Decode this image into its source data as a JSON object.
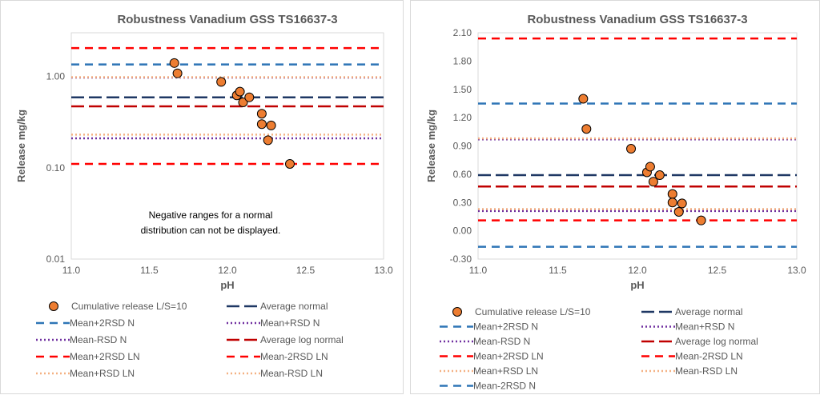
{
  "chart_data": [
    {
      "type": "scatter",
      "title": "Robustness Vanadium GSS TS16637-3",
      "xlabel": "pH",
      "ylabel": "Release mg/kg",
      "xlim": [
        11.0,
        13.0
      ],
      "ylim": [
        0.01,
        3.0
      ],
      "yscale": "log",
      "x_ticks": [
        "11.0",
        "11.5",
        "12.0",
        "12.5",
        "13.0"
      ],
      "y_ticks": [
        "0.01",
        "0.10",
        "1.00"
      ],
      "grid": false,
      "legend_position": "bottom",
      "annotation": [
        "Negative ranges for a normal",
        "distribution can not be displayed."
      ],
      "series": [
        {
          "name": "Cumulative release L/S=10",
          "kind": "markers",
          "color": "#ED7D31",
          "points": [
            [
              11.66,
              1.4
            ],
            [
              11.68,
              1.08
            ],
            [
              11.96,
              0.87
            ],
            [
              12.06,
              0.62
            ],
            [
              12.08,
              0.68
            ],
            [
              12.1,
              0.52
            ],
            [
              12.14,
              0.59
            ],
            [
              12.22,
              0.39
            ],
            [
              12.22,
              0.3
            ],
            [
              12.26,
              0.2
            ],
            [
              12.28,
              0.29
            ],
            [
              12.4,
              0.11
            ]
          ]
        },
        {
          "name": "Average normal",
          "kind": "hline",
          "value": 0.59,
          "color": "#1F3864",
          "dash": "longdash"
        },
        {
          "name": "Mean+2RSD N",
          "kind": "hline",
          "value": 1.35,
          "color": "#2E75B6",
          "dash": "dash"
        },
        {
          "name": "Mean+RSD N",
          "kind": "hline",
          "value": 0.97,
          "color": "#7030A0",
          "dash": "dot"
        },
        {
          "name": "Mean-RSD N",
          "kind": "hline",
          "value": 0.21,
          "color": "#7030A0",
          "dash": "dot"
        },
        {
          "name": "Average log normal",
          "kind": "hline",
          "value": 0.47,
          "color": "#C00000",
          "dash": "longdash"
        },
        {
          "name": "Mean+2RSD LN",
          "kind": "hline",
          "value": 2.04,
          "color": "#FF0000",
          "dash": "dash"
        },
        {
          "name": "Mean-2RSD LN",
          "kind": "hline",
          "value": 0.11,
          "color": "#FF0000",
          "dash": "dash"
        },
        {
          "name": "Mean+RSD LN",
          "kind": "hline",
          "value": 0.98,
          "color": "#F4B183",
          "dash": "dot"
        },
        {
          "name": "Mean-RSD LN",
          "kind": "hline",
          "value": 0.23,
          "color": "#F4B183",
          "dash": "dot"
        }
      ]
    },
    {
      "type": "scatter",
      "title": "Robustness Vanadium GSS TS16637-3",
      "xlabel": "pH",
      "ylabel": "Release mg/kg",
      "xlim": [
        11.0,
        13.0
      ],
      "ylim": [
        -0.3,
        2.1
      ],
      "yscale": "linear",
      "x_ticks": [
        "11.0",
        "11.5",
        "12.0",
        "12.5",
        "13.0"
      ],
      "y_ticks": [
        "-0.30",
        "0.00",
        "0.30",
        "0.60",
        "0.90",
        "1.20",
        "1.50",
        "1.80",
        "2.10"
      ],
      "grid": false,
      "legend_position": "bottom",
      "series": [
        {
          "name": "Cumulative release L/S=10",
          "kind": "markers",
          "color": "#ED7D31",
          "points": [
            [
              11.66,
              1.4
            ],
            [
              11.68,
              1.08
            ],
            [
              11.96,
              0.87
            ],
            [
              12.06,
              0.62
            ],
            [
              12.08,
              0.68
            ],
            [
              12.1,
              0.52
            ],
            [
              12.14,
              0.59
            ],
            [
              12.22,
              0.39
            ],
            [
              12.22,
              0.3
            ],
            [
              12.26,
              0.2
            ],
            [
              12.28,
              0.29
            ],
            [
              12.4,
              0.11
            ]
          ]
        },
        {
          "name": "Average normal",
          "kind": "hline",
          "value": 0.59,
          "color": "#1F3864",
          "dash": "longdash"
        },
        {
          "name": "Mean+2RSD N",
          "kind": "hline",
          "value": 1.35,
          "color": "#2E75B6",
          "dash": "dash"
        },
        {
          "name": "Mean+RSD N",
          "kind": "hline",
          "value": 0.97,
          "color": "#7030A0",
          "dash": "dot"
        },
        {
          "name": "Mean-RSD N",
          "kind": "hline",
          "value": 0.21,
          "color": "#7030A0",
          "dash": "dot"
        },
        {
          "name": "Average log normal",
          "kind": "hline",
          "value": 0.47,
          "color": "#C00000",
          "dash": "longdash"
        },
        {
          "name": "Mean+2RSD LN",
          "kind": "hline",
          "value": 2.04,
          "color": "#FF0000",
          "dash": "dash"
        },
        {
          "name": "Mean-2RSD LN",
          "kind": "hline",
          "value": 0.11,
          "color": "#FF0000",
          "dash": "dash"
        },
        {
          "name": "Mean+RSD LN",
          "kind": "hline",
          "value": 0.98,
          "color": "#F4B183",
          "dash": "dot"
        },
        {
          "name": "Mean-RSD LN",
          "kind": "hline",
          "value": 0.23,
          "color": "#F4B183",
          "dash": "dot"
        },
        {
          "name": "Mean-2RSD N",
          "kind": "hline",
          "value": -0.17,
          "color": "#2E75B6",
          "dash": "dash"
        }
      ]
    }
  ]
}
